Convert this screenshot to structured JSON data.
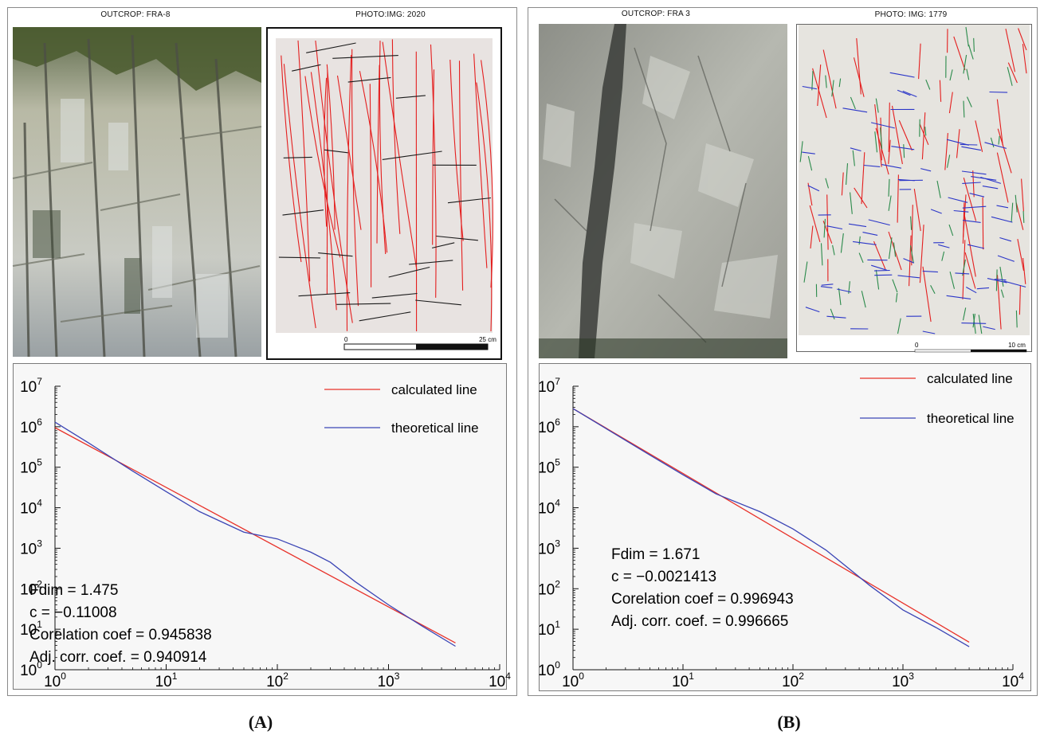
{
  "panels": [
    {
      "letter": "(A)",
      "outcrop_label": "OUTCROP: FRA-8",
      "photo_label": "PHOTO:IMG: 2020",
      "scalebar": {
        "start": "0",
        "end": "25 cm"
      },
      "stats": [
        "Fdim = 1.475",
        "c = −0.11008",
        "Corelation coef = 0.945838",
        "Adj. corr. coef. = 0.940914"
      ],
      "trace_colors": [
        "#e41e1e",
        "#1a1a1a"
      ]
    },
    {
      "letter": "(B)",
      "outcrop_label": "OUTCROP: FRA 3",
      "photo_label": "PHOTO: IMG: 1779",
      "scalebar": {
        "start": "0",
        "end": "10 cm"
      },
      "stats": [
        "Fdim = 1.671",
        "c = −0.0021413",
        "Corelation coef = 0.996943",
        "Adj. corr. coef. = 0.996665"
      ],
      "trace_colors": [
        "#e41e1e",
        "#2a8a4a",
        "#2a35c8"
      ]
    }
  ],
  "chart_data": [
    {
      "type": "line",
      "scale": "log-log",
      "xlim": [
        1,
        10000
      ],
      "ylim": [
        1,
        10000000
      ],
      "x_ticks": [
        "10^0",
        "10^1",
        "10^2",
        "10^3",
        "10^4"
      ],
      "y_ticks": [
        "10^0",
        "10^1",
        "10^2",
        "10^3",
        "10^4",
        "10^5",
        "10^6",
        "10^7"
      ],
      "legend_position": "top-right",
      "series": [
        {
          "name": "calculated line",
          "color": "#e8322a",
          "x": [
            1,
            4000
          ],
          "y": [
            950000,
            4.6
          ]
        },
        {
          "name": "theoretical line",
          "color": "#3b45b5",
          "x": [
            1,
            2,
            5,
            10,
            20,
            50,
            100,
            200,
            300,
            500,
            1000,
            2000,
            4000
          ],
          "y": [
            1300000,
            400000,
            80000,
            25000,
            8000,
            2500,
            1700,
            800,
            450,
            150,
            40,
            12,
            3.8
          ]
        }
      ]
    },
    {
      "type": "line",
      "scale": "log-log",
      "xlim": [
        1,
        10000
      ],
      "ylim": [
        1,
        10000000
      ],
      "x_ticks": [
        "10^0",
        "10^1",
        "10^2",
        "10^3",
        "10^4"
      ],
      "y_ticks": [
        "10^0",
        "10^1",
        "10^2",
        "10^3",
        "10^4",
        "10^5",
        "10^6",
        "10^7"
      ],
      "legend_position": "top-right",
      "series": [
        {
          "name": "calculated line",
          "color": "#e8322a",
          "x": [
            1,
            4000
          ],
          "y": [
            2800000,
            4.8
          ]
        },
        {
          "name": "theoretical line",
          "color": "#3b45b5",
          "x": [
            1,
            2,
            5,
            10,
            20,
            50,
            100,
            200,
            500,
            1000,
            2000,
            4000
          ],
          "y": [
            2800000,
            900000,
            200000,
            65000,
            22000,
            8000,
            3000,
            900,
            120,
            30,
            11,
            3.7
          ]
        }
      ]
    }
  ]
}
